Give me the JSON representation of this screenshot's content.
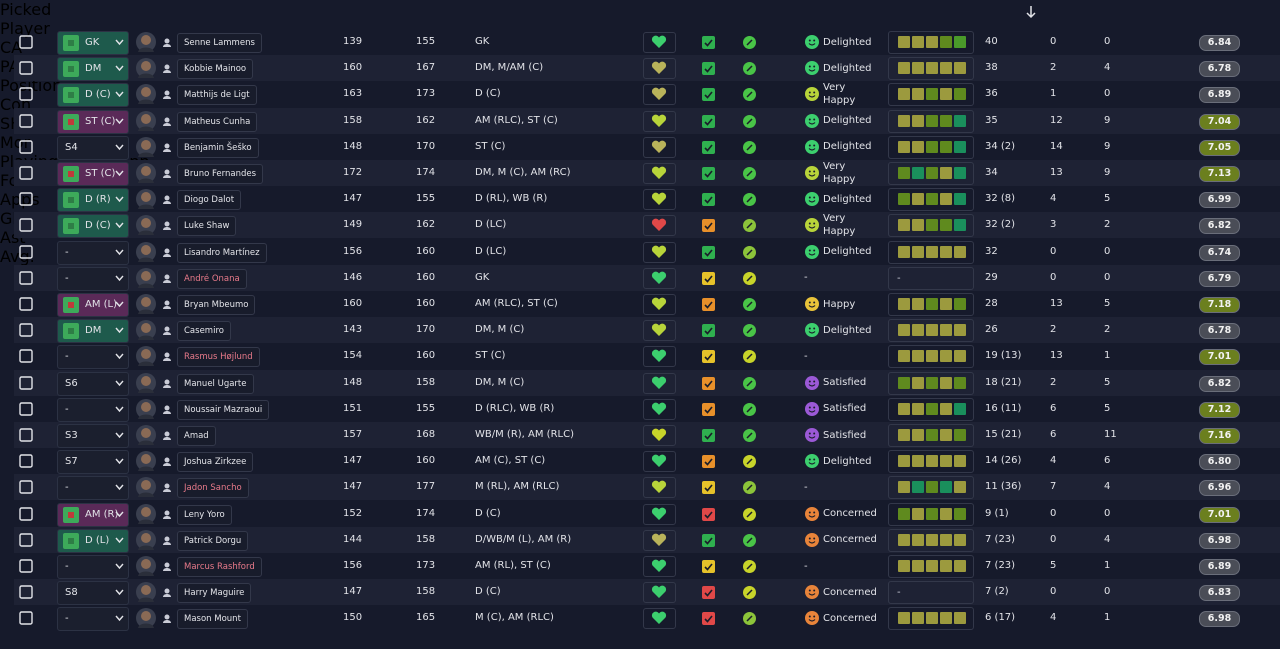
{
  "header": {
    "columns": [
      "Picked",
      "Player",
      "CA",
      "PA",
      "Position",
      "Con",
      "SHP",
      "Mor",
      "Playing Time Happ...",
      "Form",
      "Apps",
      "Gls",
      "Ast",
      "Avg."
    ]
  },
  "table": {
    "rows": [
      {
        "picked": "GK",
        "picked_color": "#1e5a4c",
        "name": "Senne Lammens",
        "name_color": "#e4e5ea",
        "ca": 139,
        "pa": 155,
        "position": "GK",
        "con_color": "#3ccf6e",
        "shp_color": "#2fb04f",
        "mor_color": "#49c447",
        "happiness": "Delighted",
        "happiness_color": "#3ccf6e",
        "form": [
          "#9c9a3e",
          "#9c9a3e",
          "#9c9a3e",
          "#5f8a1e",
          "#4a9a2a"
        ],
        "apps": "40",
        "gls": 0,
        "ast": 0,
        "avg": "6.84",
        "avg_color": "#4a4d57"
      },
      {
        "picked": "DM",
        "picked_color": "#1e5a4c",
        "name": "Kobbie Mainoo",
        "name_color": "#e4e5ea",
        "ca": 160,
        "pa": 167,
        "position": "DM, M/AM (C)",
        "con_color": "#b9b35a",
        "shp_color": "#2fb04f",
        "mor_color": "#49c447",
        "happiness": "Delighted",
        "happiness_color": "#3ccf6e",
        "form": [
          "#9c9a3e",
          "#9c9a3e",
          "#9c9a3e",
          "#9c9a3e",
          "#9c9a3e"
        ],
        "apps": "38",
        "gls": 2,
        "ast": 4,
        "avg": "6.78",
        "avg_color": "#4a4d57"
      },
      {
        "picked": "D (C)",
        "picked_color": "#1e5a4c",
        "name": "Matthijs de Ligt",
        "name_color": "#e4e5ea",
        "ca": 163,
        "pa": 173,
        "position": "D (C)",
        "con_color": "#b9b35a",
        "shp_color": "#2fb04f",
        "mor_color": "#49c447",
        "happiness": "Very Happy",
        "happiness_color": "#b8d43a",
        "form": [
          "#9c9a3e",
          "#9c9a3e",
          "#5f8a1e",
          "#9c9a3e",
          "#5f8a1e"
        ],
        "apps": "36",
        "gls": 1,
        "ast": 0,
        "avg": "6.89",
        "avg_color": "#4a4d57"
      },
      {
        "picked": "ST (C)",
        "picked_color": "#5a2a58",
        "name": "Matheus Cunha",
        "name_color": "#e4e5ea",
        "ca": 158,
        "pa": 162,
        "position": "AM (RLC), ST (C)",
        "con_color": "#b8d43a",
        "shp_color": "#2fb04f",
        "mor_color": "#49c447",
        "happiness": "Delighted",
        "happiness_color": "#3ccf6e",
        "form": [
          "#9c9a3e",
          "#9c9a3e",
          "#5f8a1e",
          "#5f8a1e",
          "#1a8f5c"
        ],
        "apps": "35",
        "gls": 12,
        "ast": 9,
        "avg": "7.04",
        "avg_color": "#6b7f1e"
      },
      {
        "picked": "S4",
        "picked_color": "#1b1f2e",
        "name": "Benjamin Šeško",
        "name_color": "#e4e5ea",
        "ca": 148,
        "pa": 170,
        "position": "ST (C)",
        "con_color": "#b9b35a",
        "shp_color": "#2fb04f",
        "mor_color": "#49c447",
        "happiness": "Delighted",
        "happiness_color": "#3ccf6e",
        "form": [
          "#9c9a3e",
          "#9c9a3e",
          "#5f8a1e",
          "#5f8a1e",
          "#1a8f5c"
        ],
        "apps": "34 (2)",
        "gls": 14,
        "ast": 9,
        "avg": "7.05",
        "avg_color": "#6b7f1e"
      },
      {
        "picked": "ST (C)",
        "picked_color": "#5a2a58",
        "name": "Bruno Fernandes",
        "name_color": "#e4e5ea",
        "ca": 172,
        "pa": 174,
        "position": "DM, M (C), AM (RC)",
        "con_color": "#b8d43a",
        "shp_color": "#2fb04f",
        "mor_color": "#49c447",
        "happiness": "Very Happy",
        "happiness_color": "#b8d43a",
        "form": [
          "#5f8a1e",
          "#1a8f5c",
          "#5f8a1e",
          "#9c9a3e",
          "#1a8f5c"
        ],
        "apps": "34",
        "gls": 13,
        "ast": 9,
        "avg": "7.13",
        "avg_color": "#6b7f1e"
      },
      {
        "picked": "D (R)",
        "picked_color": "#1e5a4c",
        "name": "Diogo Dalot",
        "name_color": "#e4e5ea",
        "ca": 147,
        "pa": 155,
        "position": "D (RL), WB (R)",
        "con_color": "#b8d43a",
        "shp_color": "#2fb04f",
        "mor_color": "#49c447",
        "happiness": "Delighted",
        "happiness_color": "#3ccf6e",
        "form": [
          "#5f8a1e",
          "#9c9a3e",
          "#5f8a1e",
          "#9c9a3e",
          "#1a8f5c"
        ],
        "apps": "32 (8)",
        "gls": 4,
        "ast": 5,
        "avg": "6.99",
        "avg_color": "#4a4d57"
      },
      {
        "picked": "D (C)",
        "picked_color": "#1e5a4c",
        "name": "Luke Shaw",
        "name_color": "#e4e5ea",
        "ca": 149,
        "pa": 162,
        "position": "D (LC)",
        "con_color": "#e04848",
        "shp_color": "#e8902a",
        "mor_color": "#8cc43a",
        "happiness": "Very Happy",
        "happiness_color": "#b8d43a",
        "form": [
          "#9c9a3e",
          "#9c9a3e",
          "#5f8a1e",
          "#5f8a1e",
          "#1a8f5c"
        ],
        "apps": "32 (2)",
        "gls": 3,
        "ast": 2,
        "avg": "6.82",
        "avg_color": "#4a4d57"
      },
      {
        "picked": "-",
        "picked_color": "#1b1f2e",
        "name": "Lisandro Martínez",
        "name_color": "#e4e5ea",
        "ca": 156,
        "pa": 160,
        "position": "D (LC)",
        "con_color": "#b8d43a",
        "shp_color": "#2fb04f",
        "mor_color": "#8cc43a",
        "happiness": "Delighted",
        "happiness_color": "#3ccf6e",
        "form": [
          "#9c9a3e",
          "#9c9a3e",
          "#9c9a3e",
          "#9c9a3e",
          "#9c9a3e"
        ],
        "apps": "32",
        "gls": 0,
        "ast": 0,
        "avg": "6.74",
        "avg_color": "#4a4d57"
      },
      {
        "picked": "-",
        "picked_color": "#1b1f2e",
        "name": "André Onana",
        "name_color": "#e87a8a",
        "ca": 146,
        "pa": 160,
        "position": "GK",
        "con_color": "#3ccf6e",
        "shp_color": "#e6c22a",
        "mor_color": "#c8d42a",
        "happiness": "-",
        "happiness_color": null,
        "form": "-",
        "apps": "29",
        "gls": 0,
        "ast": 0,
        "avg": "6.79",
        "avg_color": "#4a4d57"
      },
      {
        "picked": "AM (L)",
        "picked_color": "#5a2a58",
        "name": "Bryan Mbeumo",
        "name_color": "#e4e5ea",
        "ca": 160,
        "pa": 160,
        "position": "AM (RLC), ST (C)",
        "con_color": "#b8d43a",
        "shp_color": "#e8902a",
        "mor_color": "#49c447",
        "happiness": "Happy",
        "happiness_color": "#e8c23a",
        "form": [
          "#9c9a3e",
          "#9c9a3e",
          "#5f8a1e",
          "#9c9a3e",
          "#5f8a1e"
        ],
        "apps": "28",
        "gls": 13,
        "ast": 5,
        "avg": "7.18",
        "avg_color": "#6b7f1e"
      },
      {
        "picked": "DM",
        "picked_color": "#1e5a4c",
        "name": "Casemiro",
        "name_color": "#e4e5ea",
        "ca": 143,
        "pa": 170,
        "position": "DM, M (C)",
        "con_color": "#b8d43a",
        "shp_color": "#2fb04f",
        "mor_color": "#49c447",
        "happiness": "Delighted",
        "happiness_color": "#3ccf6e",
        "form": [
          "#9c9a3e",
          "#9c9a3e",
          "#9c9a3e",
          "#9c9a3e",
          "#9c9a3e"
        ],
        "apps": "26",
        "gls": 2,
        "ast": 2,
        "avg": "6.78",
        "avg_color": "#4a4d57"
      },
      {
        "picked": "-",
        "picked_color": "#1b1f2e",
        "name": "Rasmus Højlund",
        "name_color": "#e87a8a",
        "ca": 154,
        "pa": 160,
        "position": "ST (C)",
        "con_color": "#3ccf6e",
        "shp_color": "#e6c22a",
        "mor_color": "#c8d42a",
        "happiness": "-",
        "happiness_color": null,
        "form": [
          "#9c9a3e",
          "#9c9a3e",
          "#9c9a3e",
          "#9c9a3e",
          "#9c9a3e"
        ],
        "apps": "19 (13)",
        "gls": 13,
        "ast": 1,
        "avg": "7.01",
        "avg_color": "#6b7f1e"
      },
      {
        "picked": "S6",
        "picked_color": "#1b1f2e",
        "name": "Manuel Ugarte",
        "name_color": "#e4e5ea",
        "ca": 148,
        "pa": 158,
        "position": "DM, M (C)",
        "con_color": "#3ccf6e",
        "shp_color": "#e8902a",
        "mor_color": "#49c447",
        "happiness": "Satisfied",
        "happiness_color": "#9b59d6",
        "form": [
          "#5f8a1e",
          "#9c9a3e",
          "#5f8a1e",
          "#9c9a3e",
          "#5f8a1e"
        ],
        "apps": "18 (21)",
        "gls": 2,
        "ast": 5,
        "avg": "6.82",
        "avg_color": "#4a4d57"
      },
      {
        "picked": "-",
        "picked_color": "#1b1f2e",
        "name": "Noussair Mazraoui",
        "name_color": "#e4e5ea",
        "ca": 151,
        "pa": 155,
        "position": "D (RLC), WB (R)",
        "con_color": "#3ccf6e",
        "shp_color": "#e8902a",
        "mor_color": "#49c447",
        "happiness": "Satisfied",
        "happiness_color": "#9b59d6",
        "form": [
          "#9c9a3e",
          "#9c9a3e",
          "#5f8a1e",
          "#9c9a3e",
          "#1a8f5c"
        ],
        "apps": "16 (11)",
        "gls": 6,
        "ast": 5,
        "avg": "7.12",
        "avg_color": "#6b7f1e"
      },
      {
        "picked": "S3",
        "picked_color": "#1b1f2e",
        "name": "Amad",
        "name_color": "#e4e5ea",
        "ca": 157,
        "pa": 168,
        "position": "WB/M (R), AM (RLC)",
        "con_color": "#c8d42a",
        "shp_color": "#2fb04f",
        "mor_color": "#49c447",
        "happiness": "Satisfied",
        "happiness_color": "#9b59d6",
        "form": [
          "#9c9a3e",
          "#9c9a3e",
          "#5f8a1e",
          "#9c9a3e",
          "#5f8a1e"
        ],
        "apps": "15 (21)",
        "gls": 6,
        "ast": 11,
        "avg": "7.16",
        "avg_color": "#6b7f1e"
      },
      {
        "picked": "S7",
        "picked_color": "#1b1f2e",
        "name": "Joshua Zirkzee",
        "name_color": "#e4e5ea",
        "ca": 147,
        "pa": 160,
        "position": "AM (C), ST (C)",
        "con_color": "#3ccf6e",
        "shp_color": "#e8902a",
        "mor_color": "#c8d42a",
        "happiness": "Delighted",
        "happiness_color": "#3ccf6e",
        "form": [
          "#9c9a3e",
          "#9c9a3e",
          "#9c9a3e",
          "#9c9a3e",
          "#9c9a3e"
        ],
        "apps": "14 (26)",
        "gls": 4,
        "ast": 6,
        "avg": "6.80",
        "avg_color": "#4a4d57"
      },
      {
        "picked": "-",
        "picked_color": "#1b1f2e",
        "name": "Jadon Sancho",
        "name_color": "#e87a8a",
        "ca": 147,
        "pa": 177,
        "position": "M (RL), AM (RLC)",
        "con_color": "#b8d43a",
        "shp_color": "#e6c22a",
        "mor_color": "#8cc43a",
        "happiness": "-",
        "happiness_color": null,
        "form": [
          "#9c9a3e",
          "#1a8f5c",
          "#5f8a1e",
          "#1a8f5c",
          "#9c9a3e"
        ],
        "apps": "11 (36)",
        "gls": 7,
        "ast": 4,
        "avg": "6.96",
        "avg_color": "#4a4d57"
      },
      {
        "picked": "AM (R)",
        "picked_color": "#5a2a58",
        "name": "Leny Yoro",
        "name_color": "#e4e5ea",
        "ca": 152,
        "pa": 174,
        "position": "D (C)",
        "con_color": "#3ccf6e",
        "shp_color": "#e04848",
        "mor_color": "#c8d42a",
        "happiness": "Concerned",
        "happiness_color": "#e8843a",
        "form": [
          "#5f8a1e",
          "#9c9a3e",
          "#5f8a1e",
          "#9c9a3e",
          "#5f8a1e"
        ],
        "apps": "9 (1)",
        "gls": 0,
        "ast": 0,
        "avg": "7.01",
        "avg_color": "#6b7f1e"
      },
      {
        "picked": "D (L)",
        "picked_color": "#1e5a4c",
        "name": "Patrick Dorgu",
        "name_color": "#e4e5ea",
        "ca": 144,
        "pa": 158,
        "position": "D/WB/M (L), AM (R)",
        "con_color": "#b9b35a",
        "shp_color": "#2fb04f",
        "mor_color": "#49c447",
        "happiness": "Concerned",
        "happiness_color": "#e8843a",
        "form": [
          "#9c9a3e",
          "#9c9a3e",
          "#9c9a3e",
          "#9c9a3e",
          "#9c9a3e"
        ],
        "apps": "7 (23)",
        "gls": 0,
        "ast": 4,
        "avg": "6.98",
        "avg_color": "#4a4d57"
      },
      {
        "picked": "-",
        "picked_color": "#1b1f2e",
        "name": "Marcus Rashford",
        "name_color": "#e87a8a",
        "ca": 156,
        "pa": 173,
        "position": "AM (RL), ST (C)",
        "con_color": "#3ccf6e",
        "shp_color": "#e6c22a",
        "mor_color": "#c8d42a",
        "happiness": "-",
        "happiness_color": null,
        "form": [
          "#9c9a3e",
          "#9c9a3e",
          "#9c9a3e",
          "#9c9a3e",
          "#9c9a3e"
        ],
        "apps": "7 (23)",
        "gls": 5,
        "ast": 1,
        "avg": "6.89",
        "avg_color": "#4a4d57"
      },
      {
        "picked": "S8",
        "picked_color": "#1b1f2e",
        "name": "Harry Maguire",
        "name_color": "#e4e5ea",
        "ca": 147,
        "pa": 158,
        "position": "D (C)",
        "con_color": "#3ccf6e",
        "shp_color": "#e04848",
        "mor_color": "#c8d42a",
        "happiness": "Concerned",
        "happiness_color": "#e8843a",
        "form": "-",
        "apps": "7 (2)",
        "gls": 0,
        "ast": 0,
        "avg": "6.83",
        "avg_color": "#4a4d57"
      },
      {
        "picked": "-",
        "picked_color": "#1b1f2e",
        "name": "Mason Mount",
        "name_color": "#e4e5ea",
        "ca": 150,
        "pa": 165,
        "position": "M (C), AM (RLC)",
        "con_color": "#3ccf6e",
        "shp_color": "#e04848",
        "mor_color": "#8cc43a",
        "happiness": "Concerned",
        "happiness_color": "#e8843a",
        "form": [
          "#9c9a3e",
          "#9c9a3e",
          "#9c9a3e",
          "#9c9a3e",
          "#9c9a3e"
        ],
        "apps": "6 (17)",
        "gls": 4,
        "ast": 1,
        "avg": "6.98",
        "avg_color": "#4a4d57"
      }
    ]
  }
}
